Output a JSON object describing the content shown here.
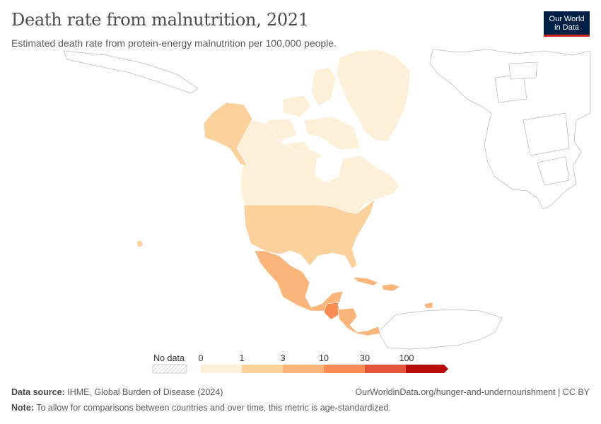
{
  "header": {
    "title": "Death rate from malnutrition, 2021",
    "subtitle": "Estimated death rate from protein-energy malnutrition per 100,000 people."
  },
  "logo": {
    "line1": "Our World",
    "line2": "in Data"
  },
  "legend": {
    "no_data_label": "No data",
    "ticks": [
      "0",
      "1",
      "3",
      "10",
      "30",
      "100"
    ],
    "colors": [
      "#fdefd8",
      "#fcd19c",
      "#fbb57a",
      "#f98d54",
      "#e3543b",
      "#b80c09"
    ]
  },
  "regions": {
    "greenland": "#fdefd8",
    "canada": "#fdefd8",
    "alaska": "#fcd19c",
    "usa": "#fcd19c",
    "mexico": "#fbb57a",
    "guatemala": "#f98d54",
    "central_america": "#fbb57a",
    "caribbean": "#fbb57a"
  },
  "footer": {
    "source_label": "Data source:",
    "source_text": "IHME, Global Burden of Disease (2024)",
    "url_text": "OurWorldinData.org/hunger-and-undernourishment | CC BY",
    "note_label": "Note:",
    "note_text": "To allow for comparisons between countries and over time, this metric is age-standardized."
  }
}
